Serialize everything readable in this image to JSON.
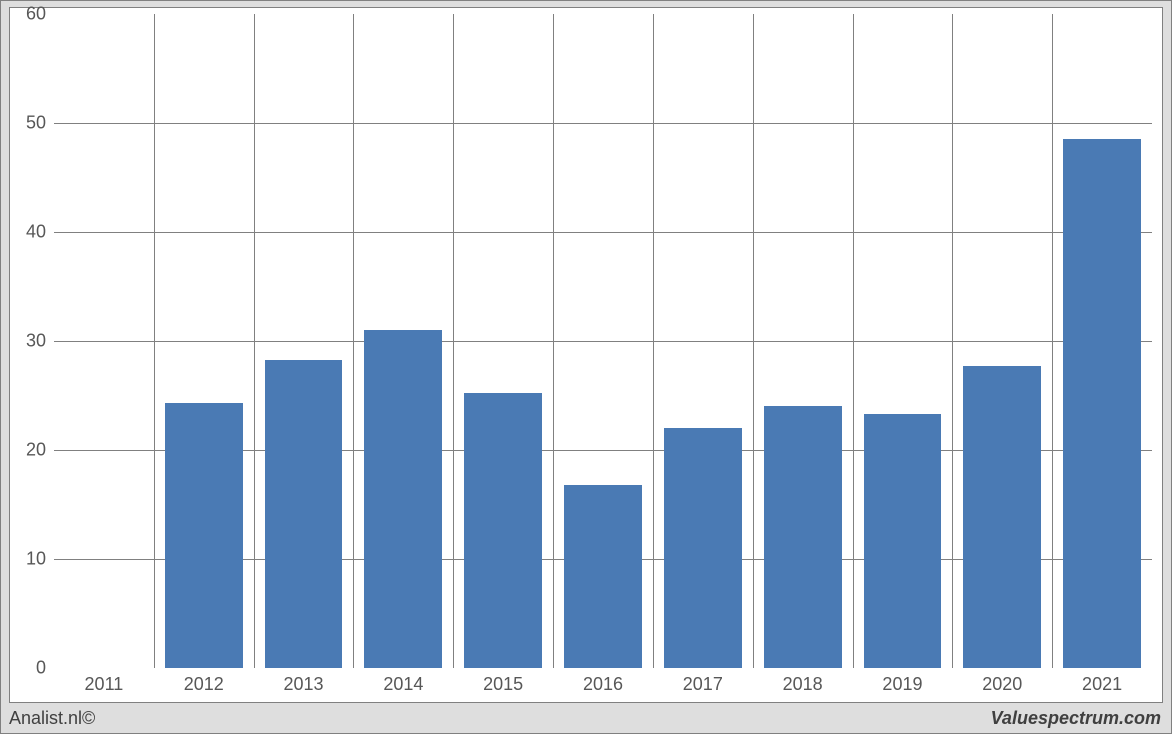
{
  "chart": {
    "type": "bar",
    "background_color": "#dedede",
    "plot_background_color": "#ffffff",
    "border_color": "#808080",
    "grid_color": "#808080",
    "gridline_width": 1,
    "bar_color": "#4a7ab4",
    "axis_label_color": "#575757",
    "axis_label_fontsize": 18,
    "bar_width_ratio": 0.78,
    "ylim": [
      0,
      60
    ],
    "y_ticks": [
      0,
      10,
      20,
      30,
      40,
      50,
      60
    ],
    "categories": [
      "2011",
      "2012",
      "2013",
      "2014",
      "2015",
      "2016",
      "2017",
      "2018",
      "2019",
      "2020",
      "2021"
    ],
    "values": [
      0,
      24.3,
      28.3,
      31.0,
      25.2,
      16.8,
      22.0,
      24.0,
      23.3,
      27.7,
      48.5
    ]
  },
  "footer": {
    "left": "Analist.nl©",
    "right": "Valuespectrum.com"
  }
}
